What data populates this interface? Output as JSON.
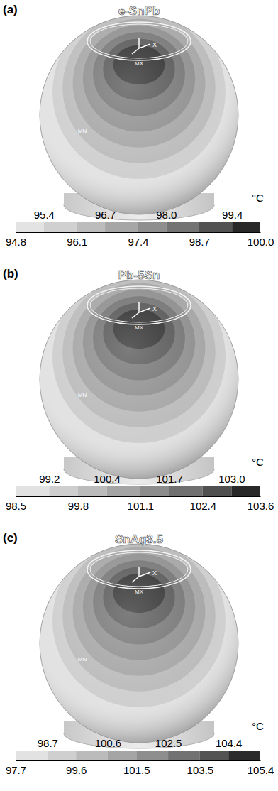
{
  "chart_data": [
    {
      "type": "contour",
      "panel": "(a)",
      "title": "e-SnPb",
      "unit": "°C",
      "max_label": "MX",
      "min_label": "MN",
      "axis_label": "X",
      "colorbar_range": [
        94.8,
        100.0
      ],
      "colorbar_ticks": [
        94.8,
        95.4,
        96.1,
        96.7,
        97.4,
        {
          "value": 98.0,
          "label": "98.0"
        },
        98.7,
        99.4,
        {
          "value": 100.0,
          "label": "100.0"
        }
      ]
    },
    {
      "type": "contour",
      "panel": "(b)",
      "title": "Pb-5Sn",
      "unit": "°C",
      "max_label": "MX",
      "min_label": "MN",
      "axis_label": "X",
      "colorbar_range": [
        98.5,
        103.6
      ],
      "colorbar_ticks": [
        98.5,
        99.2,
        99.8,
        100.4,
        101.1,
        101.7,
        102.4,
        {
          "value": 103.0,
          "label": "103.0"
        },
        103.6
      ]
    },
    {
      "type": "contour",
      "panel": "(c)",
      "title": "SnAg3.5",
      "unit": "°C",
      "max_label": "MX",
      "min_label": "MN",
      "axis_label": "X",
      "colorbar_range": [
        97.7,
        105.4
      ],
      "colorbar_ticks": [
        97.7,
        98.7,
        99.6,
        100.6,
        101.5,
        102.5,
        103.5,
        104.4,
        105.4
      ]
    }
  ]
}
